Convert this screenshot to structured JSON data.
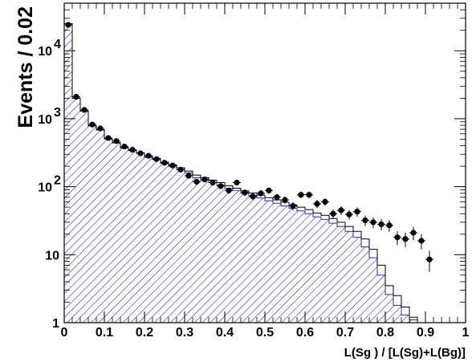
{
  "chart_data": {
    "type": "histogram",
    "title": "",
    "xlabel": "L(Sg ) / [L(Sg)+L(Bg)]",
    "ylabel": "Events / 0.02",
    "xlim": [
      0,
      1
    ],
    "ylim": [
      1,
      50000
    ],
    "yscale": "log",
    "bin_width": 0.02,
    "xticks": [
      {
        "v": 0,
        "label": "0"
      },
      {
        "v": 0.1,
        "label": "0.1"
      },
      {
        "v": 0.2,
        "label": "0.2"
      },
      {
        "v": 0.3,
        "label": "0.3"
      },
      {
        "v": 0.4,
        "label": "0.4"
      },
      {
        "v": 0.5,
        "label": "0.5"
      },
      {
        "v": 0.6,
        "label": "0.6"
      },
      {
        "v": 0.7,
        "label": "0.7"
      },
      {
        "v": 0.8,
        "label": "0.8"
      },
      {
        "v": 0.9,
        "label": "0.9"
      },
      {
        "v": 1,
        "label": "1"
      }
    ],
    "yticks": [
      {
        "v": 1,
        "base": "1",
        "exp": ""
      },
      {
        "v": 10,
        "base": "10",
        "exp": ""
      },
      {
        "v": 100,
        "base": "10",
        "exp": "2"
      },
      {
        "v": 1000,
        "base": "10",
        "exp": "3"
      },
      {
        "v": 10000,
        "base": "10",
        "exp": "4"
      }
    ],
    "colors": {
      "hatch": "#2b2bb0",
      "frame": "#000000",
      "points": "#000000"
    },
    "series": [
      {
        "style": "hatched-filled-histogram",
        "values": [
          25000,
          2000,
          1300,
          780,
          680,
          500,
          440,
          370,
          340,
          310,
          270,
          250,
          220,
          200,
          180,
          160,
          135,
          125,
          115,
          105,
          95,
          88,
          80,
          74,
          68,
          62,
          57,
          52,
          48,
          44,
          40,
          36,
          33,
          29,
          26,
          22,
          18,
          13,
          9,
          5,
          2.6,
          1.8,
          1.3,
          1.1,
          1.0,
          1.0,
          1.0,
          1.0,
          1.0,
          1.0
        ]
      },
      {
        "style": "open-histogram",
        "values": [
          25000,
          2000,
          1300,
          790,
          690,
          505,
          445,
          375,
          345,
          315,
          280,
          260,
          230,
          210,
          190,
          170,
          148,
          135,
          125,
          115,
          103,
          95,
          87,
          81,
          75,
          69,
          64,
          59,
          54,
          50,
          46,
          41,
          38,
          34,
          30,
          26,
          22,
          17,
          12,
          7,
          3.5,
          2.5,
          1.7,
          1.2,
          1.0,
          1.0,
          1.0,
          1.0,
          1.0,
          1.0
        ]
      },
      {
        "style": "points-with-errors",
        "x": [
          0.01,
          0.03,
          0.05,
          0.07,
          0.09,
          0.11,
          0.13,
          0.15,
          0.17,
          0.19,
          0.21,
          0.23,
          0.25,
          0.27,
          0.29,
          0.31,
          0.33,
          0.35,
          0.37,
          0.39,
          0.41,
          0.43,
          0.45,
          0.47,
          0.49,
          0.51,
          0.53,
          0.55,
          0.57,
          0.59,
          0.61,
          0.63,
          0.65,
          0.67,
          0.69,
          0.71,
          0.73,
          0.75,
          0.77,
          0.79,
          0.81,
          0.83,
          0.85,
          0.87,
          0.89,
          0.91
        ],
        "y": [
          24000,
          2100,
          1350,
          820,
          720,
          520,
          470,
          390,
          350,
          310,
          285,
          255,
          225,
          205,
          178,
          145,
          118,
          128,
          115,
          102,
          88,
          115,
          82,
          72,
          80,
          88,
          70,
          64,
          52,
          76,
          76,
          56,
          60,
          40,
          45,
          39,
          43,
          32,
          30,
          28,
          27,
          18,
          17,
          21,
          16,
          8.5
        ],
        "yerr": [
          155,
          46,
          37,
          29,
          27,
          23,
          22,
          20,
          19,
          18,
          17,
          16,
          15,
          14,
          13,
          12,
          11,
          11,
          11,
          10,
          9,
          11,
          9,
          8.5,
          9,
          9.4,
          8.4,
          8,
          7.2,
          8.7,
          8.7,
          7.5,
          7.7,
          6.3,
          6.7,
          6.2,
          6.6,
          5.7,
          5.5,
          5.3,
          5.2,
          4.2,
          4.1,
          4.6,
          4,
          2.9
        ]
      }
    ]
  }
}
